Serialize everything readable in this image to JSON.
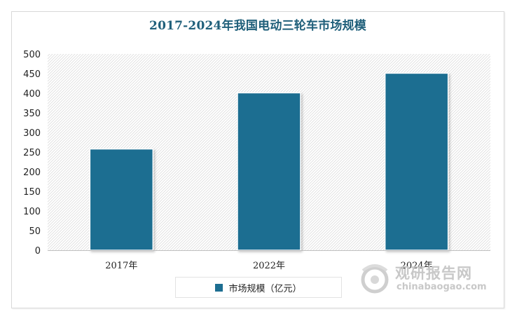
{
  "chart_data": {
    "type": "bar",
    "title": "2017-2024年我国电动三轮车市场规模",
    "categories": [
      "2017年",
      "2022年",
      "2024年"
    ],
    "series": [
      {
        "name": "市场规模（亿元）",
        "values": [
          258,
          401,
          451
        ]
      }
    ],
    "ylim": [
      0,
      500
    ],
    "yticks": [
      0,
      50,
      100,
      150,
      200,
      250,
      300,
      350,
      400,
      450,
      500
    ],
    "xlabel": "",
    "ylabel": "",
    "grid": false,
    "plot_background": "diagonal-hatch",
    "legend_position": "bottom",
    "colors": {
      "bar": "#1d6e91",
      "title": "#1f5f7a"
    }
  },
  "watermark": {
    "name": "观研报告网",
    "url": "chinabaogao.com"
  }
}
